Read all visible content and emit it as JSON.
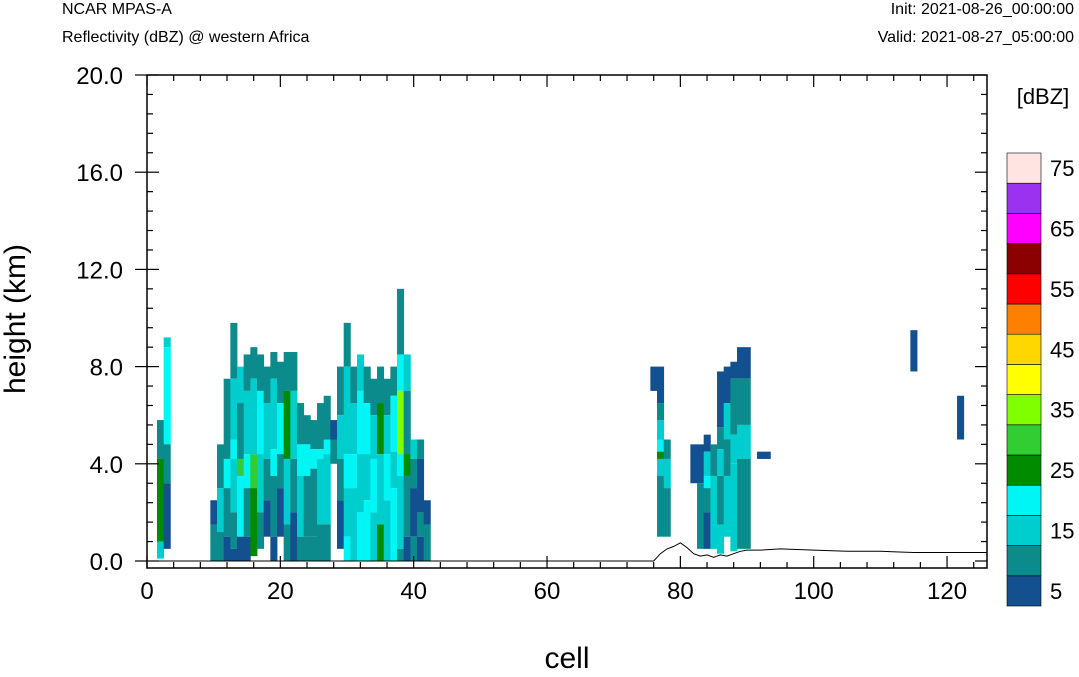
{
  "header": {
    "model": "NCAR MPAS-A",
    "field": "Reflectivity (dBZ) @ western Africa",
    "init": "Init: 2021-08-26_00:00:00",
    "valid": "Valid: 2021-08-27_05:00:00"
  },
  "chart_data": {
    "type": "heatmap",
    "xlabel": "cell",
    "ylabel": "height (km)",
    "xlim": [
      0,
      126
    ],
    "ylim": [
      -0.2,
      20.5
    ],
    "x_ticks": [
      0,
      20,
      40,
      60,
      80,
      100,
      120
    ],
    "y_ticks": [
      0.0,
      4.0,
      8.0,
      12.0,
      16.0,
      20.0
    ],
    "x_tick_labels": [
      "0",
      "20",
      "40",
      "60",
      "80",
      "100",
      "120"
    ],
    "y_tick_labels": [
      "0.0",
      "4.0",
      "8.0",
      "12.0",
      "16.0",
      "20.0"
    ],
    "grid": false,
    "colorbar": {
      "units": "[dBZ]",
      "levels": [
        5,
        10,
        15,
        20,
        25,
        30,
        35,
        40,
        45,
        50,
        55,
        60,
        65,
        70,
        75
      ],
      "labels": [
        "5",
        "15",
        "25",
        "35",
        "45",
        "55",
        "65",
        "75"
      ],
      "colors": [
        "#13508f",
        "#0b8b8b",
        "#00cdcd",
        "#00f5f5",
        "#008b00",
        "#32cd32",
        "#7fff00",
        "#ffff00",
        "#ffd700",
        "#ff7f00",
        "#ff0000",
        "#8b0000",
        "#ff00ff",
        "#9a32f0",
        "#ffe4e1"
      ]
    },
    "terrain": [
      [
        0,
        0
      ],
      [
        76,
        0
      ],
      [
        77,
        0.3
      ],
      [
        78,
        0.5
      ],
      [
        79,
        0.6
      ],
      [
        80,
        0.75
      ],
      [
        81,
        0.55
      ],
      [
        82,
        0.3
      ],
      [
        83,
        0.2
      ],
      [
        84,
        0.25
      ],
      [
        85,
        0.15
      ],
      [
        86,
        0.25
      ],
      [
        87,
        0.2
      ],
      [
        88,
        0.3
      ],
      [
        89,
        0.4
      ],
      [
        90,
        0.45
      ],
      [
        92,
        0.45
      ],
      [
        95,
        0.5
      ],
      [
        100,
        0.45
      ],
      [
        105,
        0.4
      ],
      [
        110,
        0.4
      ],
      [
        115,
        0.35
      ],
      [
        120,
        0.35
      ],
      [
        126,
        0.35
      ]
    ],
    "columns": [
      {
        "x": 2,
        "top": 5.8,
        "layers": [
          [
            10,
            4.2
          ],
          [
            25,
            0.8
          ],
          [
            15,
            0.1
          ]
        ]
      },
      {
        "x": 3,
        "top": 9.2,
        "layers": [
          [
            15,
            8.8
          ],
          [
            20,
            4.8
          ],
          [
            10,
            3.2
          ],
          [
            5,
            0.5
          ]
        ]
      },
      {
        "x": 10,
        "top": 2.5,
        "layers": [
          [
            5,
            1.5
          ],
          [
            10,
            0
          ]
        ]
      },
      {
        "x": 11,
        "top": 4.8,
        "layers": [
          [
            10,
            3.0
          ],
          [
            15,
            1.2
          ],
          [
            10,
            0
          ]
        ]
      },
      {
        "x": 12,
        "top": 7.5,
        "layers": [
          [
            10,
            4.2
          ],
          [
            20,
            3.0
          ],
          [
            10,
            1.0
          ],
          [
            5,
            0
          ]
        ]
      },
      {
        "x": 13,
        "top": 9.8,
        "layers": [
          [
            10,
            7.5
          ],
          [
            15,
            5.0
          ],
          [
            20,
            4.2
          ],
          [
            15,
            2.0
          ],
          [
            10,
            0.5
          ],
          [
            5,
            0
          ]
        ]
      },
      {
        "x": 14,
        "top": 8.0,
        "layers": [
          [
            15,
            6.5
          ],
          [
            10,
            4.2
          ],
          [
            30,
            3.5
          ],
          [
            20,
            1.0
          ],
          [
            5,
            0
          ]
        ]
      },
      {
        "x": 15,
        "top": 8.5,
        "layers": [
          [
            10,
            7.0
          ],
          [
            15,
            4.4
          ],
          [
            20,
            3.0
          ],
          [
            10,
            1.0
          ],
          [
            5,
            0
          ]
        ]
      },
      {
        "x": 16,
        "top": 8.8,
        "layers": [
          [
            10,
            7.5
          ],
          [
            15,
            4.4
          ],
          [
            30,
            3.0
          ],
          [
            25,
            0.2
          ]
        ]
      },
      {
        "x": 17,
        "top": 8.5,
        "layers": [
          [
            10,
            7.0
          ],
          [
            20,
            4.4
          ],
          [
            15,
            2.0
          ],
          [
            10,
            0.5
          ]
        ]
      },
      {
        "x": 18,
        "top": 8.0,
        "layers": [
          [
            10,
            6.5
          ],
          [
            15,
            4.2
          ],
          [
            10,
            2.5
          ],
          [
            5,
            1.0
          ]
        ]
      },
      {
        "x": 19,
        "top": 8.6,
        "layers": [
          [
            10,
            7.5
          ],
          [
            15,
            4.6
          ],
          [
            20,
            3.5
          ],
          [
            10,
            1.0
          ],
          [
            5,
            0
          ]
        ]
      },
      {
        "x": 20,
        "top": 8.2,
        "layers": [
          [
            10,
            6.5
          ],
          [
            20,
            4.4
          ],
          [
            10,
            3.0
          ],
          [
            5,
            1.0
          ]
        ]
      },
      {
        "x": 21,
        "top": 8.6,
        "layers": [
          [
            10,
            7.0
          ],
          [
            25,
            4.2
          ],
          [
            15,
            1.5
          ],
          [
            10,
            0
          ]
        ]
      },
      {
        "x": 22,
        "top": 8.6,
        "layers": [
          [
            10,
            7.0
          ],
          [
            15,
            4.2
          ],
          [
            10,
            2.0
          ],
          [
            5,
            0
          ]
        ]
      },
      {
        "x": 23,
        "top": 6.5,
        "layers": [
          [
            10,
            4.8
          ],
          [
            20,
            3.5
          ],
          [
            15,
            1.0
          ],
          [
            10,
            0
          ]
        ]
      },
      {
        "x": 24,
        "top": 6.0,
        "layers": [
          [
            10,
            4.8
          ],
          [
            20,
            3.5
          ],
          [
            10,
            1.0
          ],
          [
            10,
            0
          ]
        ]
      },
      {
        "x": 25,
        "top": 5.8,
        "layers": [
          [
            10,
            4.6
          ],
          [
            20,
            3.8
          ],
          [
            10,
            1.0
          ],
          [
            10,
            0
          ]
        ]
      },
      {
        "x": 26,
        "top": 6.5,
        "layers": [
          [
            10,
            4.6
          ],
          [
            20,
            4.2
          ],
          [
            15,
            1.5
          ],
          [
            10,
            0
          ]
        ]
      },
      {
        "x": 27,
        "top": 6.8,
        "layers": [
          [
            10,
            5.0
          ],
          [
            20,
            4.4
          ],
          [
            15,
            1.5
          ],
          [
            10,
            0
          ]
        ]
      },
      {
        "x": 28,
        "top": 5.8,
        "layers": [
          [
            5,
            5.0
          ],
          [
            10,
            4.0
          ]
        ]
      },
      {
        "x": 29,
        "top": 8.0,
        "layers": [
          [
            10,
            6.0
          ],
          [
            15,
            4.2
          ],
          [
            10,
            2.5
          ],
          [
            5,
            0.5
          ]
        ]
      },
      {
        "x": 30,
        "top": 9.8,
        "layers": [
          [
            10,
            8.0
          ],
          [
            15,
            4.4
          ],
          [
            20,
            3.0
          ],
          [
            15,
            1.0
          ],
          [
            20,
            0
          ]
        ]
      },
      {
        "x": 31,
        "top": 8.0,
        "layers": [
          [
            10,
            6.5
          ],
          [
            15,
            4.4
          ],
          [
            20,
            3.0
          ],
          [
            15,
            0
          ]
        ]
      },
      {
        "x": 32,
        "top": 8.5,
        "layers": [
          [
            15,
            7.0
          ],
          [
            20,
            4.4
          ],
          [
            15,
            2.0
          ],
          [
            20,
            0
          ]
        ]
      },
      {
        "x": 33,
        "top": 8.0,
        "layers": [
          [
            10,
            6.5
          ],
          [
            20,
            4.4
          ],
          [
            15,
            2.5
          ],
          [
            20,
            0
          ]
        ]
      },
      {
        "x": 34,
        "top": 7.5,
        "layers": [
          [
            10,
            6.0
          ],
          [
            15,
            4.2
          ],
          [
            20,
            2.0
          ],
          [
            15,
            0
          ]
        ]
      },
      {
        "x": 35,
        "top": 8.0,
        "layers": [
          [
            10,
            6.5
          ],
          [
            25,
            4.4
          ],
          [
            15,
            1.5
          ],
          [
            25,
            0
          ]
        ]
      },
      {
        "x": 36,
        "top": 7.5,
        "layers": [
          [
            10,
            6.0
          ],
          [
            15,
            4.4
          ],
          [
            20,
            2.5
          ],
          [
            15,
            0
          ]
        ]
      },
      {
        "x": 37,
        "top": 8.0,
        "layers": [
          [
            10,
            6.8
          ],
          [
            20,
            4.5
          ],
          [
            15,
            3.0
          ],
          [
            20,
            0
          ]
        ]
      },
      {
        "x": 38,
        "top": 11.2,
        "layers": [
          [
            10,
            8.5
          ],
          [
            20,
            7.0
          ],
          [
            35,
            4.4
          ],
          [
            20,
            3.5
          ],
          [
            15,
            0.5
          ],
          [
            10,
            0
          ]
        ]
      },
      {
        "x": 39,
        "top": 8.5,
        "layers": [
          [
            15,
            7.0
          ],
          [
            10,
            4.4
          ],
          [
            25,
            3.5
          ],
          [
            10,
            1.0
          ],
          [
            5,
            0
          ]
        ]
      },
      {
        "x": 40,
        "top": 5.0,
        "layers": [
          [
            15,
            4.2
          ],
          [
            10,
            3.0
          ],
          [
            5,
            1.0
          ],
          [
            10,
            0
          ]
        ]
      },
      {
        "x": 41,
        "top": 5.0,
        "layers": [
          [
            10,
            4.2
          ],
          [
            5,
            2.0
          ],
          [
            10,
            1.0
          ],
          [
            5,
            0
          ]
        ]
      },
      {
        "x": 42,
        "top": 2.5,
        "layers": [
          [
            5,
            1.5
          ],
          [
            10,
            0
          ]
        ]
      },
      {
        "x": 76,
        "top": 8.0,
        "layers": [
          [
            5,
            7.0
          ]
        ]
      },
      {
        "x": 77,
        "top": 8.0,
        "layers": [
          [
            5,
            6.5
          ],
          [
            10,
            5.8
          ],
          [
            15,
            5.0
          ],
          [
            20,
            4.5
          ],
          [
            25,
            4.2
          ],
          [
            15,
            3.5
          ],
          [
            10,
            1.0
          ]
        ]
      },
      {
        "x": 78,
        "top": 5.0,
        "layers": [
          [
            10,
            4.2
          ],
          [
            15,
            3.0
          ],
          [
            10,
            1.0
          ]
        ]
      },
      {
        "x": 82,
        "top": 4.8,
        "layers": [
          [
            5,
            3.2
          ]
        ]
      },
      {
        "x": 83,
        "top": 4.8,
        "layers": [
          [
            5,
            3.2
          ],
          [
            10,
            0.5
          ]
        ]
      },
      {
        "x": 84,
        "top": 5.2,
        "layers": [
          [
            5,
            4.5
          ],
          [
            15,
            3.5
          ],
          [
            20,
            3.0
          ],
          [
            10,
            2.0
          ],
          [
            5,
            0.5
          ]
        ]
      },
      {
        "x": 85,
        "top": 4.8,
        "layers": [
          [
            10,
            3.5
          ],
          [
            15,
            0.5
          ]
        ]
      },
      {
        "x": 86,
        "top": 7.8,
        "layers": [
          [
            5,
            5.5
          ],
          [
            10,
            4.6
          ],
          [
            15,
            3.5
          ],
          [
            10,
            1.5
          ],
          [
            15,
            0.3
          ]
        ]
      },
      {
        "x": 87,
        "top": 8.0,
        "layers": [
          [
            5,
            6.5
          ],
          [
            15,
            5.0
          ],
          [
            10,
            3.5
          ],
          [
            15,
            1.0
          ]
        ]
      },
      {
        "x": 88,
        "top": 8.2,
        "layers": [
          [
            5,
            7.5
          ],
          [
            10,
            5.2
          ],
          [
            15,
            4.0
          ],
          [
            15,
            0.4
          ]
        ]
      },
      {
        "x": 89,
        "top": 8.8,
        "layers": [
          [
            5,
            7.5
          ],
          [
            10,
            5.6
          ],
          [
            15,
            4.2
          ],
          [
            10,
            0.5
          ]
        ]
      },
      {
        "x": 90,
        "top": 8.8,
        "layers": [
          [
            5,
            7.5
          ],
          [
            10,
            5.6
          ],
          [
            15,
            4.2
          ],
          [
            10,
            0.5
          ]
        ]
      },
      {
        "x": 92,
        "top": 4.5,
        "layers": [
          [
            5,
            4.2
          ]
        ]
      },
      {
        "x": 93,
        "top": 4.5,
        "layers": [
          [
            5,
            4.2
          ]
        ]
      },
      {
        "x": 115,
        "top": 9.5,
        "layers": [
          [
            5,
            7.8
          ]
        ]
      },
      {
        "x": 122,
        "top": 6.8,
        "layers": [
          [
            5,
            5.0
          ]
        ]
      }
    ]
  }
}
